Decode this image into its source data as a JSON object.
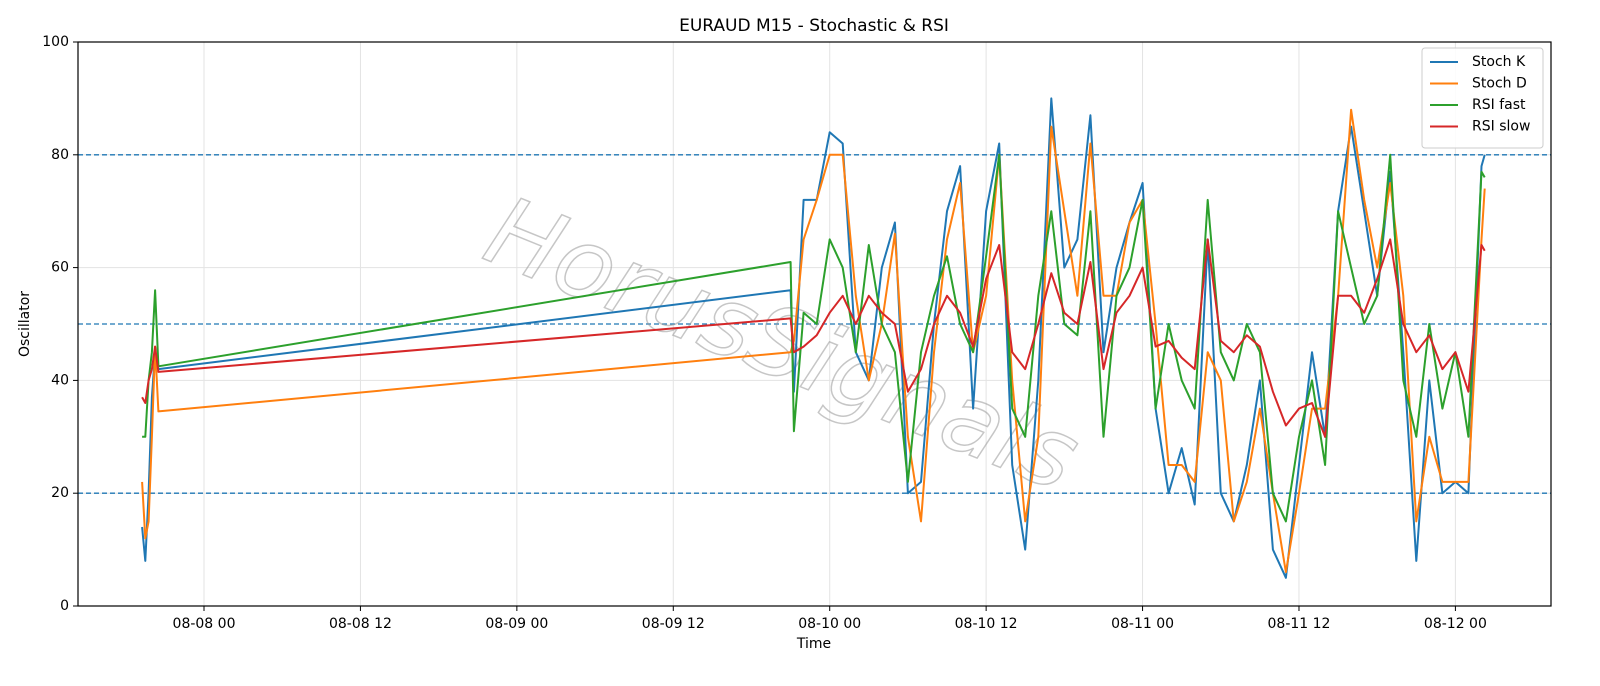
{
  "chart_data": {
    "type": "line",
    "title": "EURAUD M15 - Stochastic & RSI",
    "xlabel": "Time",
    "ylabel": "Oscillator",
    "watermark": "HorusSignals",
    "x": [
      "08-07 19:15",
      "08-07 19:30",
      "08-07 19:45",
      "08-07 20:00",
      "08-07 20:15",
      "08-07 20:30",
      "08-09 21:00",
      "08-09 21:15",
      "08-09 22:00",
      "08-09 23:00",
      "08-10 00:00",
      "08-10 01:00",
      "08-10 02:00",
      "08-10 03:00",
      "08-10 04:00",
      "08-10 05:00",
      "08-10 06:00",
      "08-10 07:00",
      "08-10 08:00",
      "08-10 09:00",
      "08-10 10:00",
      "08-10 11:00",
      "08-10 12:00",
      "08-10 13:00",
      "08-10 14:00",
      "08-10 15:00",
      "08-10 16:00",
      "08-10 17:00",
      "08-10 18:00",
      "08-10 19:00",
      "08-10 20:00",
      "08-10 21:00",
      "08-10 22:00",
      "08-10 23:00",
      "08-11 00:00",
      "08-11 01:00",
      "08-11 02:00",
      "08-11 03:00",
      "08-11 04:00",
      "08-11 05:00",
      "08-11 06:00",
      "08-11 07:00",
      "08-11 08:00",
      "08-11 09:00",
      "08-11 10:00",
      "08-11 11:00",
      "08-11 12:00",
      "08-11 13:00",
      "08-11 14:00",
      "08-11 15:00",
      "08-11 16:00",
      "08-11 17:00",
      "08-11 18:00",
      "08-11 19:00",
      "08-11 20:00",
      "08-11 21:00",
      "08-11 22:00",
      "08-11 23:00",
      "08-12 00:00",
      "08-12 01:00",
      "08-12 02:00",
      "08-12 02:15"
    ],
    "series": [
      {
        "name": "Stoch K",
        "color": "#1f77b4",
        "values": [
          14,
          8,
          20,
          37,
          45,
          42,
          56,
          38,
          72,
          72,
          84,
          82,
          45,
          40,
          60,
          68,
          20,
          22,
          50,
          70,
          78,
          35,
          70,
          82,
          25,
          10,
          40,
          90,
          60,
          65,
          87,
          45,
          60,
          68,
          75,
          35,
          20,
          28,
          18,
          65,
          20,
          15,
          25,
          40,
          10,
          5,
          25,
          45,
          30,
          70,
          85,
          70,
          55,
          77,
          45,
          8,
          40,
          20,
          22,
          20,
          78,
          80
        ]
      },
      {
        "name": "Stoch D",
        "color": "#ff7f0e",
        "values": [
          22,
          12,
          15,
          30,
          46,
          34.5,
          45,
          47,
          65,
          72,
          80,
          80,
          55,
          40,
          50,
          66,
          30,
          15,
          45,
          65,
          75,
          45,
          55,
          80,
          40,
          15,
          30,
          85,
          70,
          55,
          82,
          55,
          55,
          68,
          72,
          50,
          25,
          25,
          22,
          45,
          40,
          15,
          22,
          35,
          20,
          6,
          20,
          35,
          35,
          55,
          88,
          72,
          60,
          75,
          55,
          15,
          30,
          22,
          22,
          22,
          65,
          74
        ]
      },
      {
        "name": "RSI fast",
        "color": "#2ca02c",
        "values": [
          30,
          30,
          40,
          45,
          56,
          42.5,
          61,
          31,
          52,
          50,
          65,
          60,
          45,
          64,
          50,
          45,
          22,
          45,
          55,
          62,
          50,
          45,
          62,
          80,
          35,
          30,
          55,
          70,
          50,
          48,
          70,
          30,
          55,
          60,
          72,
          35,
          50,
          40,
          35,
          72,
          45,
          40,
          50,
          45,
          20,
          15,
          30,
          40,
          25,
          70,
          60,
          50,
          55,
          80,
          40,
          30,
          50,
          35,
          45,
          30,
          77,
          76
        ]
      },
      {
        "name": "RSI slow",
        "color": "#d62728",
        "values": [
          37,
          36,
          40,
          42,
          46,
          41.5,
          51,
          45,
          46,
          48,
          52,
          55,
          50,
          55,
          52,
          50,
          38,
          42,
          50,
          55,
          52,
          46,
          58,
          64,
          45,
          42,
          50,
          59,
          52,
          50,
          61,
          42,
          52,
          55,
          60,
          46,
          47,
          44,
          42,
          65,
          47,
          45,
          48,
          46,
          38,
          32,
          35,
          36,
          30,
          55,
          55,
          52,
          58,
          65,
          50,
          45,
          48,
          42,
          45,
          38,
          64,
          63
        ]
      }
    ],
    "xlim": [
      "08-07 14:20",
      "08-12 07:20"
    ],
    "xticks": [
      "08-08 00",
      "08-08 12",
      "08-09 00",
      "08-09 12",
      "08-10 00",
      "08-10 12",
      "08-11 00",
      "08-11 12",
      "08-12 00"
    ],
    "ylim": [
      0,
      100
    ],
    "yticks": [
      0,
      20,
      40,
      60,
      80,
      100
    ],
    "hlines": [
      20,
      50,
      80
    ],
    "hline_color": "#1f77b4",
    "grid": true,
    "legend": "upper right"
  }
}
